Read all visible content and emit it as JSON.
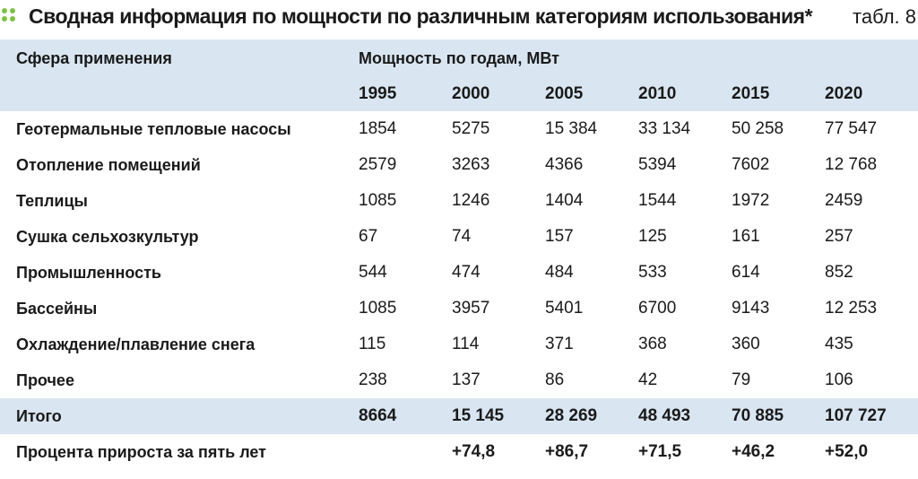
{
  "title": "Сводная информация по мощности по различным категориям использования*",
  "table_tag": "табл. 8",
  "header": {
    "col_label": "Сфера применения",
    "group_label": "Мощность по годам, МВт",
    "years": [
      "1995",
      "2000",
      "2005",
      "2010",
      "2015",
      "2020"
    ]
  },
  "rows": [
    {
      "label": "Геотермальные тепловые насосы",
      "values": [
        "1854",
        "5275",
        "15 384",
        "33 134",
        "50 258",
        "77 547"
      ]
    },
    {
      "label": "Отопление помещений",
      "values": [
        "2579",
        "3263",
        "4366",
        "5394",
        "7602",
        "12 768"
      ]
    },
    {
      "label": "Теплицы",
      "values": [
        "1085",
        "1246",
        "1404",
        "1544",
        "1972",
        "2459"
      ]
    },
    {
      "label": "Сушка сельхозкультур",
      "values": [
        "67",
        "74",
        "157",
        "125",
        "161",
        "257"
      ]
    },
    {
      "label": "Промышленность",
      "values": [
        "544",
        "474",
        "484",
        "533",
        "614",
        "852"
      ]
    },
    {
      "label": "Бассейны",
      "values": [
        "1085",
        "3957",
        "5401",
        "6700",
        "9143",
        "12 253"
      ]
    },
    {
      "label": "Охлаждение/плавление снега",
      "values": [
        "115",
        "114",
        "371",
        "368",
        "360",
        "435"
      ]
    },
    {
      "label": "Прочее",
      "values": [
        "238",
        "137",
        "86",
        "42",
        "79",
        "106"
      ]
    },
    {
      "label": "Итого",
      "values": [
        "8664",
        "15 145",
        "28 269",
        "48 493",
        "70 885",
        "107 727"
      ]
    },
    {
      "label": "Процента прироста за пять лет",
      "values": [
        "",
        "+74,8",
        "+86,7",
        "+71,5",
        "+46,2",
        "+52,0"
      ]
    }
  ],
  "colors": {
    "accent": "#7ec242",
    "row_shade": "#d9e6f1",
    "text": "#1a1a1a"
  },
  "icons": {
    "title_marker": "four-dots-icon"
  }
}
